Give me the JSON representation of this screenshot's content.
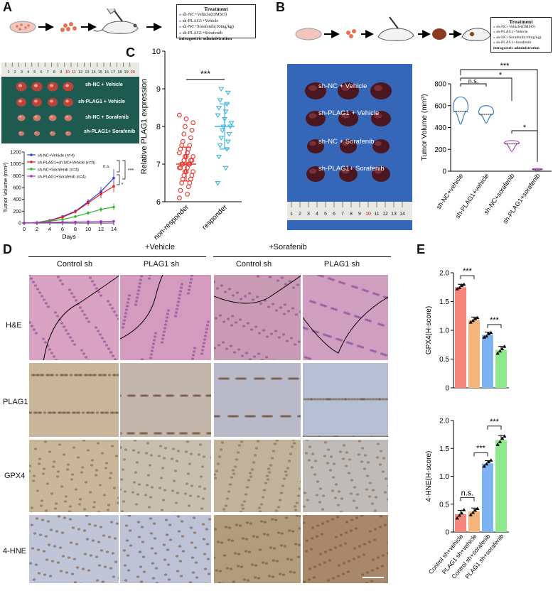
{
  "panels": {
    "A": "A",
    "B": "B",
    "C": "C",
    "D": "D",
    "E": "E"
  },
  "treatmentA": {
    "title": "Treatment",
    "items": [
      "sh-NC+Vehicle(DMSO)",
      "sh-PLAG1+Vehicle",
      "sh-NC+Sorafenib(10mg/kg)",
      "sh-PLAG1+Sorafenib"
    ],
    "footer": "intragastric administration"
  },
  "treatmentB": {
    "title": "Treatment",
    "items": [
      "sh-NC+Vehicle(DMSO)",
      "sh-PLAG1+Vehicle",
      "sh-NC+Sorafenib(10mg/kg)",
      "sh-PLAG1+Sorafenib"
    ],
    "footer": "intragastric administration"
  },
  "photoA": {
    "rows": [
      "sh-NC + Vehicle",
      "sh-PLAG1 + Vehicle",
      "sh-NC + Sorafenib",
      "sh-PLAG1+ Sorafenib"
    ],
    "ruler": [
      "1",
      "2",
      "3",
      "4",
      "5",
      "6",
      "7",
      "8",
      "9",
      "10",
      "11",
      "12",
      "13",
      "14",
      "15",
      "16",
      "17",
      "18",
      "19",
      "20"
    ]
  },
  "photoB": {
    "rows": [
      "sh-NC + Vehicle",
      "sh-PLAG1 + Vehicle",
      "sh-NC + Sorafenib",
      "sh-PLAG1+ Sorafenib"
    ],
    "ruler": [
      "1",
      "2",
      "3",
      "4",
      "5",
      "6",
      "7",
      "8",
      "9",
      "10",
      "11",
      "12",
      "13",
      "14"
    ]
  },
  "chart_data": [
    {
      "id": "A-growth",
      "type": "line",
      "xlabel": "Days",
      "ylabel": "Tumor Volume (mm³)",
      "x": [
        0,
        2,
        4,
        6,
        8,
        10,
        12,
        14
      ],
      "xlim": [
        0,
        14
      ],
      "ylim": [
        0,
        1200
      ],
      "yticks": [
        0,
        200,
        400,
        600,
        800,
        1000,
        1200
      ],
      "series": [
        {
          "name": "sh-NC+Vehicle (n=4)",
          "color": "#2b3ee6",
          "values": [
            0,
            10,
            45,
            110,
            200,
            360,
            530,
            760
          ],
          "err": [
            0,
            3,
            10,
            20,
            30,
            50,
            80,
            150
          ]
        },
        {
          "name": "sh-PLAG1+sh-NC+Vehicle (n=4)",
          "color": "#e02020",
          "values": [
            0,
            10,
            40,
            100,
            190,
            340,
            490,
            620
          ],
          "err": [
            0,
            3,
            10,
            20,
            30,
            50,
            70,
            100
          ]
        },
        {
          "name": "sh-NC+Sorafenib (n=4)",
          "color": "#2fb52f",
          "values": [
            0,
            8,
            30,
            60,
            110,
            170,
            230,
            270
          ],
          "err": [
            0,
            3,
            8,
            15,
            20,
            30,
            40,
            60
          ]
        },
        {
          "name": "sh-PLAG1+Sorafenib (n=4)",
          "color": "#b02bd0",
          "values": [
            0,
            5,
            10,
            15,
            18,
            22,
            26,
            30
          ],
          "err": [
            0,
            2,
            3,
            4,
            5,
            5,
            6,
            8
          ]
        }
      ],
      "annotations": [
        "n.s.",
        "***",
        "*"
      ]
    },
    {
      "id": "C",
      "type": "scatter",
      "ylabel": "Relative PLAG1 expression",
      "categories": [
        "non-responder",
        "responder"
      ],
      "ylim": [
        6,
        10
      ],
      "yticks": [
        6,
        7,
        8,
        9,
        10
      ],
      "mean": [
        7.0,
        8.0
      ],
      "sd": [
        0.45,
        0.6
      ],
      "colors": [
        "#e8332a",
        "#3fb8dc"
      ],
      "annotation": "***",
      "points": [
        [
          6.1,
          6.2,
          6.3,
          6.4,
          6.5,
          6.5,
          6.6,
          6.6,
          6.7,
          6.7,
          6.8,
          6.8,
          6.8,
          6.9,
          6.9,
          6.9,
          7.0,
          7.0,
          7.0,
          7.0,
          7.1,
          7.1,
          7.1,
          7.2,
          7.2,
          7.2,
          7.3,
          7.3,
          7.4,
          7.4,
          7.5,
          7.5,
          7.6,
          7.7,
          7.8,
          7.9,
          8.0,
          8.1,
          8.2,
          8.3
        ],
        [
          6.5,
          6.9,
          7.2,
          7.4,
          7.5,
          7.6,
          7.7,
          7.8,
          7.9,
          8.0,
          8.0,
          8.1,
          8.2,
          8.3,
          8.4,
          8.5,
          8.6,
          8.7,
          8.9,
          9.0
        ]
      ]
    },
    {
      "id": "B-volume",
      "type": "violin",
      "ylabel": "Tumor Volume (mm³)",
      "categories": [
        "sh-NC+vehicle",
        "sh-PLAG1+vehicle",
        "sh-NC+sorafenib",
        "sh-PLAG1+sorafenib"
      ],
      "ylim": [
        0,
        800
      ],
      "yticks": [
        0,
        200,
        400,
        600,
        800
      ],
      "median": [
        550,
        520,
        250,
        15
      ],
      "range": [
        [
          430,
          680
        ],
        [
          440,
          600
        ],
        [
          180,
          280
        ],
        [
          5,
          25
        ]
      ],
      "colors": [
        "#3a7fc0",
        "#3a7fc0",
        "#b04cc0",
        "#b04cc0"
      ],
      "annotations": [
        "n.s.",
        "*",
        "***",
        "*"
      ]
    },
    {
      "id": "E-GPX4",
      "type": "bar",
      "ylabel": "GPX4(H-score)",
      "categories": [
        "Control sh+vehicle",
        "PLAG1 sh+vehicle",
        "Control sh+sorafenib",
        "PLAG1 sh+sorafenib"
      ],
      "values": [
        1.75,
        1.18,
        0.92,
        0.66
      ],
      "err": [
        0.05,
        0.05,
        0.05,
        0.06
      ],
      "ylim": [
        0,
        2.0
      ],
      "yticks": [
        0,
        0.5,
        1.0,
        1.5,
        2.0
      ],
      "colors": [
        "#f5867e",
        "#f6b57a",
        "#7eb3f2",
        "#8ee88c"
      ],
      "annotations": [
        "***",
        "***"
      ],
      "points": [
        [
          1.72,
          1.74,
          1.78,
          1.8
        ],
        [
          1.14,
          1.17,
          1.2,
          1.22
        ],
        [
          0.88,
          0.9,
          0.94,
          0.96
        ],
        [
          0.6,
          0.64,
          0.68,
          0.72
        ]
      ]
    },
    {
      "id": "E-4HNE",
      "type": "bar",
      "ylabel": "4-HNE(H-score)",
      "categories": [
        "Control sh+vehicle",
        "PLAG1 sh+vehicle",
        "Control sh+sorafenib",
        "PLAG1 sh+sorafenib"
      ],
      "values": [
        0.32,
        0.37,
        1.23,
        1.65
      ],
      "err": [
        0.07,
        0.06,
        0.05,
        0.08
      ],
      "ylim": [
        0,
        2.0
      ],
      "yticks": [
        0,
        0.5,
        1.0,
        1.5,
        2.0
      ],
      "colors": [
        "#f5867e",
        "#f6b57a",
        "#7eb3f2",
        "#8ee88c"
      ],
      "annotations": [
        "n.s.",
        "***",
        "***"
      ],
      "points": [
        [
          0.25,
          0.3,
          0.34,
          0.4
        ],
        [
          0.31,
          0.35,
          0.39,
          0.42
        ],
        [
          1.18,
          1.22,
          1.26,
          1.29
        ],
        [
          1.57,
          1.62,
          1.68,
          1.72
        ]
      ]
    }
  ],
  "histology": {
    "groups": [
      "+Vehicle",
      "+Sorafenib"
    ],
    "columns": [
      "Control sh",
      "PLAG1 sh",
      "Control sh",
      "PLAG1 sh"
    ],
    "rows": [
      "H&E",
      "PLAG1",
      "GPX4",
      "4-HNE"
    ]
  }
}
